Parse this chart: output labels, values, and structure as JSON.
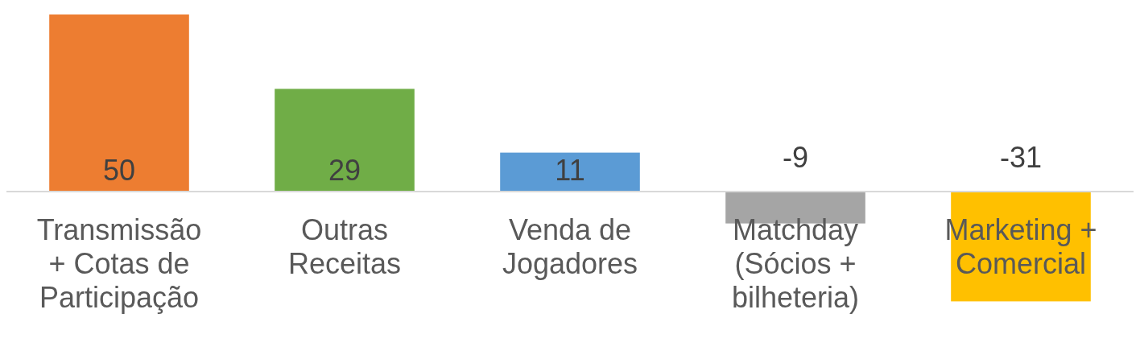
{
  "chart_data": {
    "type": "bar",
    "categories": [
      "Transmissão + Cotas de Participação",
      "Outras Receitas",
      "Venda de Jogadores",
      "Matchday (Sócios + bilheteria)",
      "Marketing + Comercial"
    ],
    "values": [
      50,
      29,
      11,
      -9,
      -31
    ],
    "colors": [
      "#ed7d31",
      "#70ad47",
      "#5b9bd5",
      "#a5a5a5",
      "#ffc000"
    ],
    "data_labels": true
  }
}
